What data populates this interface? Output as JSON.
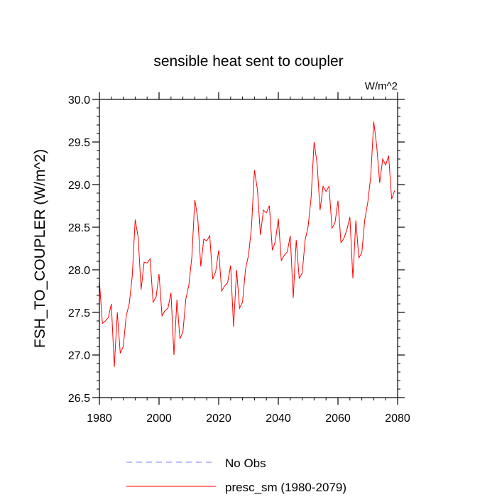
{
  "chart_data": {
    "type": "line",
    "title": "sensible heat sent to coupler",
    "units_label": "W/m^2",
    "xlabel": "",
    "ylabel": "FSH_TO_COUPLER  (W/m^2)",
    "xlim": [
      1980,
      2080
    ],
    "ylim": [
      26.5,
      30.0
    ],
    "x_ticks": [
      1980,
      2000,
      2020,
      2040,
      2060,
      2080
    ],
    "x_tick_labels": [
      "1980",
      "2000",
      "2020",
      "2040",
      "2060",
      "2080"
    ],
    "y_ticks": [
      26.5,
      27.0,
      27.5,
      28.0,
      28.5,
      29.0,
      29.5,
      30.0
    ],
    "y_tick_labels": [
      "26.5",
      "27.0",
      "27.5",
      "28.0",
      "28.5",
      "29.0",
      "29.5",
      "30.0"
    ],
    "x_minor_step": 4,
    "y_minor_step": 0.1,
    "series": [
      {
        "name": "presc_sm (1980-2079)",
        "color": "#ff0000",
        "style": "solid",
        "x": [
          1980,
          1981,
          1982,
          1983,
          1984,
          1985,
          1986,
          1987,
          1988,
          1989,
          1990,
          1991,
          1992,
          1993,
          1994,
          1995,
          1996,
          1997,
          1998,
          1999,
          2000,
          2001,
          2002,
          2003,
          2004,
          2005,
          2006,
          2007,
          2008,
          2009,
          2010,
          2011,
          2012,
          2013,
          2014,
          2015,
          2016,
          2017,
          2018,
          2019,
          2020,
          2021,
          2022,
          2023,
          2024,
          2025,
          2026,
          2027,
          2028,
          2029,
          2030,
          2031,
          2032,
          2033,
          2034,
          2035,
          2036,
          2037,
          2038,
          2039,
          2040,
          2041,
          2042,
          2043,
          2044,
          2045,
          2046,
          2047,
          2048,
          2049,
          2050,
          2051,
          2052,
          2053,
          2054,
          2055,
          2056,
          2057,
          2058,
          2059,
          2060,
          2061,
          2062,
          2063,
          2064,
          2065,
          2066,
          2067,
          2068,
          2069,
          2070,
          2071,
          2072,
          2073,
          2074,
          2075,
          2076,
          2077,
          2078,
          2079
        ],
        "values": [
          27.87,
          27.37,
          27.4,
          27.44,
          27.6,
          26.86,
          27.5,
          27.02,
          27.1,
          27.46,
          27.6,
          27.92,
          28.59,
          28.38,
          27.77,
          28.09,
          28.08,
          28.13,
          27.62,
          27.68,
          27.95,
          27.46,
          27.52,
          27.55,
          27.73,
          27.0,
          27.65,
          27.19,
          27.27,
          27.66,
          27.82,
          28.15,
          28.82,
          28.6,
          28.04,
          28.36,
          28.34,
          28.4,
          27.89,
          27.98,
          28.23,
          27.75,
          27.81,
          27.85,
          28.05,
          27.33,
          28.0,
          27.55,
          27.62,
          28.01,
          28.17,
          28.5,
          29.17,
          28.94,
          28.41,
          28.7,
          28.67,
          28.75,
          28.23,
          28.33,
          28.6,
          28.11,
          28.17,
          28.21,
          28.4,
          27.67,
          28.35,
          27.9,
          27.96,
          28.35,
          28.51,
          28.85,
          29.5,
          29.25,
          28.7,
          28.98,
          28.92,
          28.98,
          28.49,
          28.55,
          28.81,
          28.32,
          28.37,
          28.47,
          28.62,
          27.9,
          28.58,
          28.14,
          28.2,
          28.59,
          28.79,
          29.1,
          29.74,
          29.45,
          29.02,
          29.3,
          29.23,
          29.34,
          28.83,
          28.93
        ]
      },
      {
        "name": "No Obs",
        "color": "#7b7bff",
        "style": "dashed",
        "x": [],
        "values": []
      }
    ],
    "legend_position": "bottom-center"
  }
}
